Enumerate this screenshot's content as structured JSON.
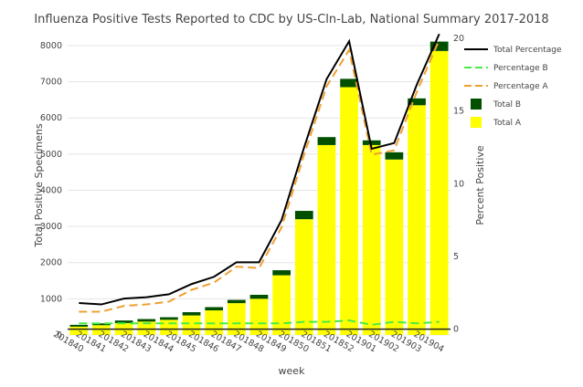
{
  "chart_data": {
    "type": "bar",
    "title": "Influenza Positive Tests Reported to CDC by US-Cln-Lab, National Summary 2017-2018",
    "xlabel": "week",
    "ylabel": "Total Positive Specimens",
    "y2label": "Percent Positive",
    "categories": [
      "201840",
      "201841",
      "201842",
      "201843",
      "201844",
      "201845",
      "201846",
      "201847",
      "201848",
      "201849",
      "201850",
      "201851",
      "201852",
      "201901",
      "201902",
      "201903",
      "201904"
    ],
    "ylim": [
      0,
      8200
    ],
    "y2lim": [
      -0.4,
      20
    ],
    "yticks": [
      0,
      1000,
      2000,
      3000,
      4000,
      5000,
      6000,
      7000,
      8000
    ],
    "y2ticks": [
      0,
      5,
      10,
      15,
      20
    ],
    "legend_position": "right",
    "colors": {
      "total_a": "#ffff00",
      "total_b": "#005000",
      "total_percentage": "#000000",
      "percentage_a": "#f0a030",
      "percentage_b": "#44ee44"
    },
    "series": [
      {
        "name": "Total A",
        "kind": "bar",
        "values": [
          230,
          270,
          330,
          370,
          420,
          540,
          680,
          880,
          1000,
          1650,
          3200,
          5250,
          6850,
          5250,
          4850,
          6350,
          7850
        ]
      },
      {
        "name": "Total B",
        "kind": "bar-stacked",
        "values": [
          50,
          50,
          70,
          70,
          70,
          90,
          90,
          90,
          110,
          140,
          230,
          220,
          230,
          130,
          200,
          190,
          260
        ]
      },
      {
        "name": "Total Percentage",
        "kind": "line",
        "axis": "y2",
        "values": [
          1.8,
          1.7,
          2.1,
          2.2,
          2.4,
          3.1,
          3.6,
          4.6,
          4.6,
          7.5,
          12.5,
          17.2,
          19.8,
          12.4,
          12.8,
          16.8,
          20.3
        ]
      },
      {
        "name": "Percentage B",
        "kind": "line",
        "axis": "y2",
        "values": [
          0.4,
          0.4,
          0.4,
          0.4,
          0.4,
          0.4,
          0.4,
          0.4,
          0.4,
          0.4,
          0.5,
          0.5,
          0.6,
          0.3,
          0.5,
          0.4,
          0.5
        ]
      },
      {
        "name": "Percentage A",
        "kind": "line",
        "axis": "y2",
        "values": [
          1.2,
          1.2,
          1.6,
          1.7,
          1.9,
          2.7,
          3.2,
          4.3,
          4.2,
          7.0,
          12.0,
          16.7,
          19.2,
          12.0,
          12.3,
          16.3,
          19.9
        ]
      }
    ],
    "legend_order": [
      "Total Percentage",
      "Percentage B",
      "Percentage A",
      "Total B",
      "Total A"
    ]
  }
}
